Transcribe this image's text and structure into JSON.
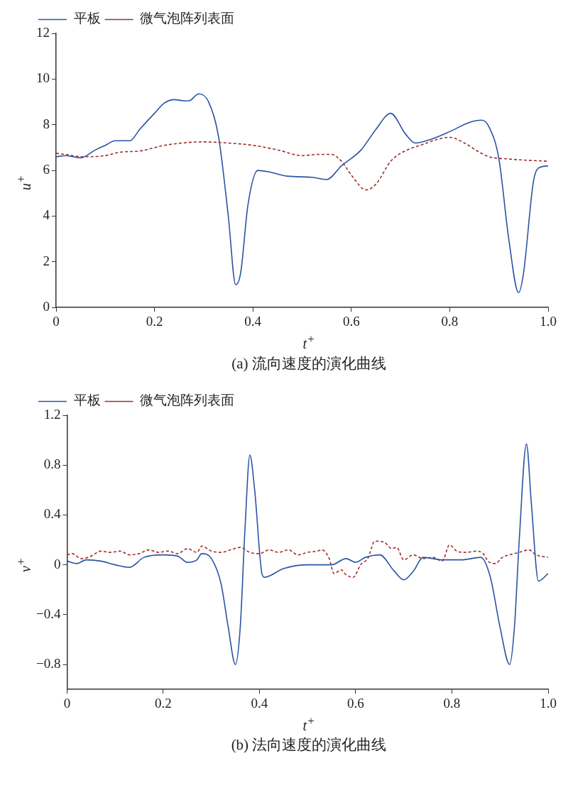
{
  "chart_data": [
    {
      "type": "line",
      "xlabel": "t$^{+}$",
      "ylabel": "u$^{+}$",
      "annotations": [
        "(a) 流向速度的演化曲线"
      ],
      "legend": "top left",
      "marker": "none",
      "xlim": [
        0,
        1
      ],
      "xticks": [
        0,
        0.2,
        0.4,
        0.6,
        0.8,
        {
          "value": 1,
          "label": "1.0"
        }
      ],
      "ylim": [
        0,
        12
      ],
      "yticks": [
        0,
        2,
        4,
        6,
        8,
        10,
        12
      ],
      "series": [
        {
          "name": "平板",
          "color": "#2b54a3",
          "line_style": "solid",
          "x": [
            0,
            0.02,
            0.05,
            0.08,
            0.1,
            0.12,
            0.15,
            0.17,
            0.2,
            0.22,
            0.24,
            0.26,
            0.27,
            0.29,
            0.31,
            0.33,
            0.35,
            0.365,
            0.375,
            0.39,
            0.41,
            0.43,
            0.47,
            0.52,
            0.55,
            0.58,
            0.62,
            0.65,
            0.68,
            0.71,
            0.73,
            0.76,
            0.8,
            0.84,
            0.865,
            0.88,
            0.9,
            0.92,
            0.94,
            0.95,
            0.97,
            0.98,
            1.0
          ],
          "values": [
            6.6,
            6.65,
            6.55,
            6.9,
            7.1,
            7.3,
            7.3,
            7.8,
            8.5,
            8.95,
            9.1,
            9.05,
            9.05,
            9.35,
            9.0,
            7.5,
            4.0,
            1.0,
            1.5,
            4.5,
            6.0,
            5.95,
            5.75,
            5.7,
            5.6,
            6.2,
            6.9,
            7.8,
            8.5,
            7.6,
            7.2,
            7.35,
            7.7,
            8.1,
            8.2,
            7.9,
            6.5,
            3.0,
            0.65,
            1.5,
            5.5,
            6.1,
            6.2
          ]
        },
        {
          "name": "微气泡阵列表面",
          "color": "#a02c2c",
          "line_style": "dashed",
          "x": [
            0,
            0.02,
            0.05,
            0.1,
            0.13,
            0.17,
            0.22,
            0.3,
            0.35,
            0.4,
            0.45,
            0.5,
            0.53,
            0.56,
            0.58,
            0.6,
            0.63,
            0.65,
            0.68,
            0.7,
            0.74,
            0.8,
            0.83,
            0.86,
            0.88,
            0.92,
            1.0
          ],
          "values": [
            6.75,
            6.7,
            6.6,
            6.65,
            6.8,
            6.85,
            7.1,
            7.25,
            7.2,
            7.1,
            6.9,
            6.65,
            6.7,
            6.7,
            6.4,
            5.8,
            5.15,
            5.4,
            6.4,
            6.75,
            7.1,
            7.45,
            7.2,
            6.8,
            6.6,
            6.5,
            6.4
          ]
        }
      ]
    },
    {
      "type": "line",
      "xlabel": "t$^{+}$",
      "ylabel": "v$^{+}$",
      "annotations": [
        "(b) 法向速度的演化曲线"
      ],
      "legend": "top left",
      "marker": "none",
      "xlim": [
        0,
        1
      ],
      "xticks": [
        0,
        0.2,
        0.4,
        0.6,
        0.8,
        {
          "value": 1,
          "label": "1.0"
        }
      ],
      "ylim": [
        -1,
        1.2
      ],
      "yticks": [
        {
          "value": -0.8,
          "label": "−0.8"
        },
        {
          "value": -0.4,
          "label": "−0.4"
        },
        0,
        0.4,
        0.8,
        1.2
      ],
      "series": [
        {
          "name": "平板",
          "color": "#2b54a3",
          "line_style": "solid",
          "x": [
            0,
            0.02,
            0.04,
            0.07,
            0.1,
            0.13,
            0.16,
            0.2,
            0.23,
            0.25,
            0.27,
            0.28,
            0.3,
            0.32,
            0.335,
            0.35,
            0.36,
            0.37,
            0.38,
            0.39,
            0.405,
            0.41,
            0.45,
            0.5,
            0.55,
            0.58,
            0.6,
            0.62,
            0.65,
            0.68,
            0.7,
            0.72,
            0.74,
            0.78,
            0.82,
            0.86,
            0.88,
            0.9,
            0.92,
            0.93,
            0.94,
            0.955,
            0.965,
            0.98,
            1.0
          ],
          "values": [
            0.03,
            0.01,
            0.04,
            0.03,
            0.0,
            -0.02,
            0.06,
            0.08,
            0.07,
            0.02,
            0.04,
            0.09,
            0.05,
            -0.15,
            -0.5,
            -0.8,
            -0.5,
            0.3,
            0.88,
            0.6,
            -0.07,
            -0.1,
            -0.03,
            0.0,
            0.0,
            0.05,
            0.02,
            0.06,
            0.08,
            -0.05,
            -0.12,
            -0.05,
            0.06,
            0.04,
            0.04,
            0.06,
            -0.1,
            -0.5,
            -0.8,
            -0.5,
            0.2,
            0.97,
            0.5,
            -0.13,
            -0.07
          ]
        },
        {
          "name": "微气泡阵列表面",
          "color": "#a02c2c",
          "line_style": "dashed",
          "x": [
            0,
            0.01,
            0.03,
            0.05,
            0.07,
            0.09,
            0.11,
            0.13,
            0.15,
            0.17,
            0.19,
            0.21,
            0.23,
            0.25,
            0.27,
            0.28,
            0.3,
            0.32,
            0.34,
            0.36,
            0.38,
            0.4,
            0.42,
            0.44,
            0.46,
            0.48,
            0.5,
            0.52,
            0.53,
            0.545,
            0.555,
            0.57,
            0.58,
            0.595,
            0.61,
            0.625,
            0.64,
            0.66,
            0.675,
            0.685,
            0.7,
            0.72,
            0.74,
            0.76,
            0.78,
            0.795,
            0.81,
            0.83,
            0.85,
            0.865,
            0.875,
            0.89,
            0.905,
            0.92,
            0.94,
            0.96,
            0.975,
            1.0
          ],
          "values": [
            0.08,
            0.09,
            0.05,
            0.07,
            0.11,
            0.1,
            0.11,
            0.08,
            0.09,
            0.12,
            0.1,
            0.11,
            0.09,
            0.13,
            0.1,
            0.15,
            0.11,
            0.1,
            0.12,
            0.14,
            0.1,
            0.09,
            0.12,
            0.1,
            0.12,
            0.08,
            0.1,
            0.11,
            0.12,
            0.05,
            -0.07,
            -0.04,
            -0.08,
            -0.1,
            0.0,
            0.05,
            0.19,
            0.18,
            0.13,
            0.14,
            0.04,
            0.08,
            0.05,
            0.06,
            0.03,
            0.16,
            0.11,
            0.1,
            0.11,
            0.09,
            0.03,
            0.01,
            0.06,
            0.08,
            0.1,
            0.12,
            0.08,
            0.06
          ]
        }
      ]
    }
  ]
}
